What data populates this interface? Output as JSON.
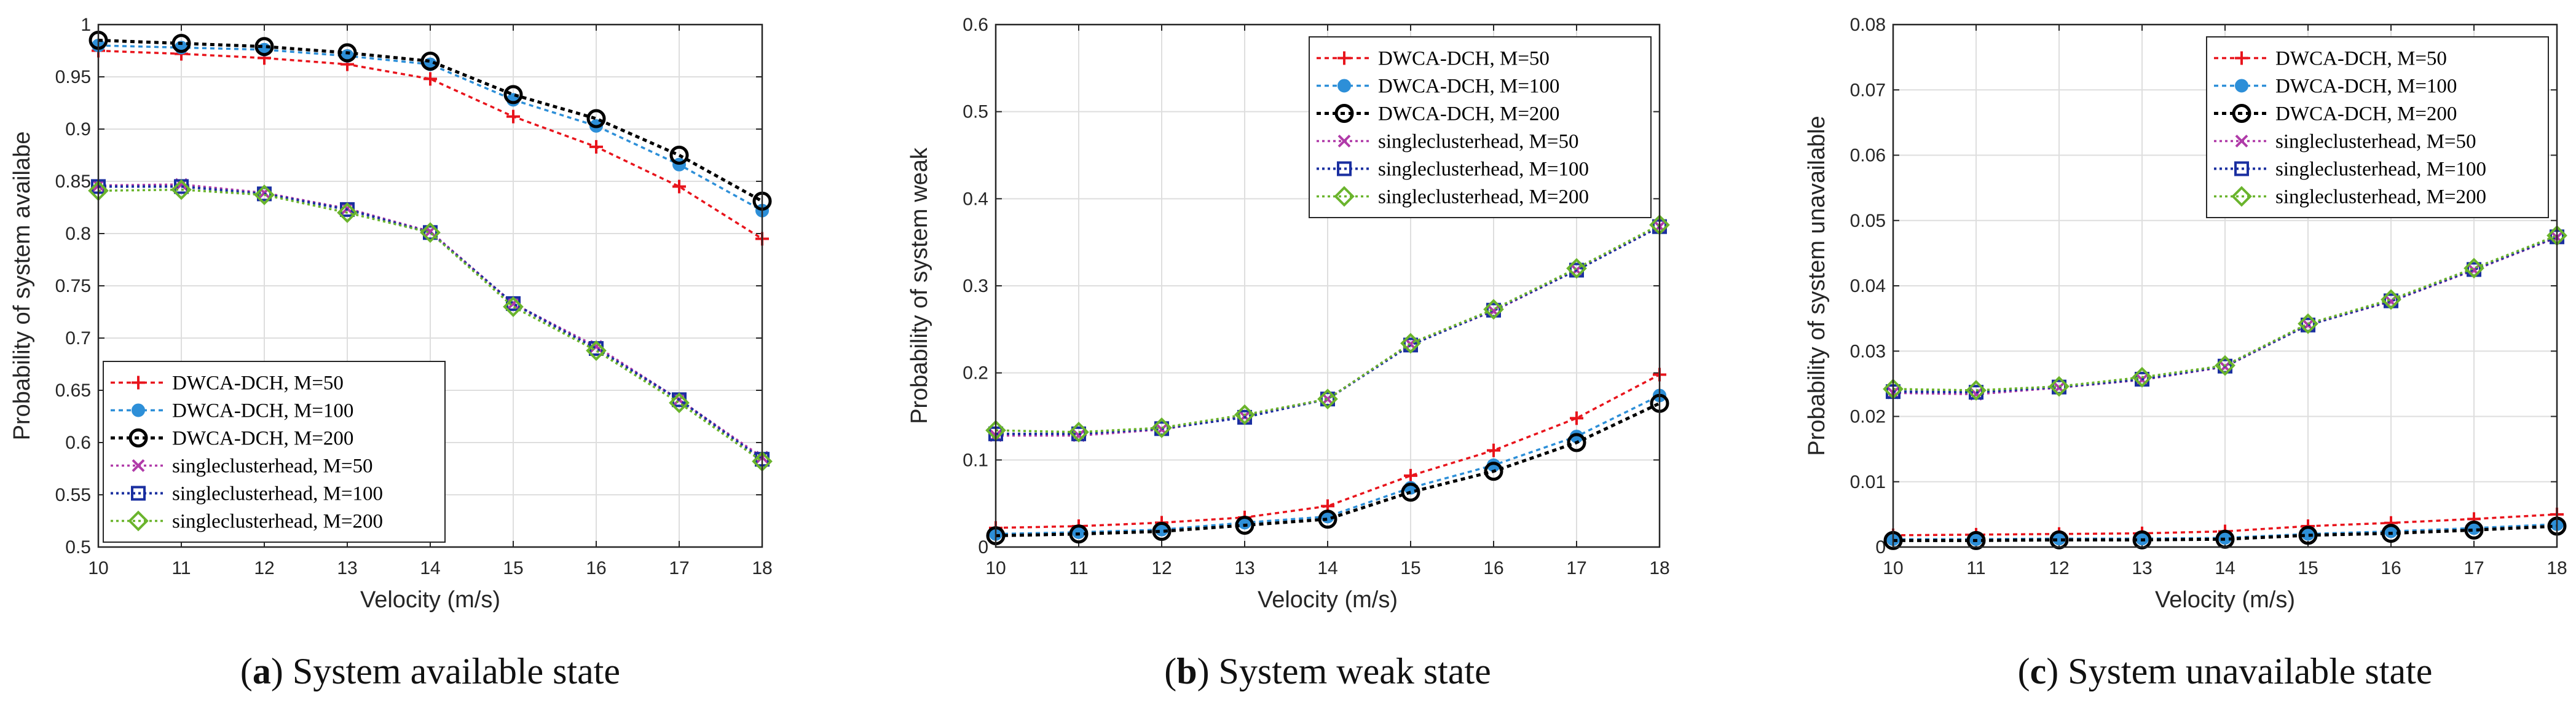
{
  "colors": {
    "DWCA-DCH, M=50": "#e8141c",
    "DWCA-DCH, M=100": "#2d8fd8",
    "DWCA-DCH, M=200": "#000000",
    "singleclusterhead, M=50": "#b03aa8",
    "singleclusterhead, M=100": "#1a2fa0",
    "singleclusterhead, M=200": "#6ab42c"
  },
  "chart_data": [
    {
      "type": "line",
      "panel_tag": "a",
      "caption": "System available state",
      "xlabel": "Velocity (m/s)",
      "ylabel": "Probability of system availabe",
      "x": [
        10,
        11,
        12,
        13,
        14,
        15,
        16,
        17,
        18
      ],
      "xticks": [
        "10",
        "11",
        "12",
        "13",
        "14",
        "15",
        "16",
        "17",
        "18"
      ],
      "xlim": [
        10,
        18
      ],
      "ylim": [
        0.5,
        1
      ],
      "yticks": [
        "0.5",
        "0.55",
        "0.6",
        "0.65",
        "0.7",
        "0.75",
        "0.8",
        "0.85",
        "0.9",
        "0.95",
        "1"
      ],
      "grid": true,
      "legend_position": "bottom-left",
      "series": [
        {
          "name": "DWCA-DCH, M=50",
          "marker": "plus",
          "values": [
            0.975,
            0.972,
            0.968,
            0.962,
            0.948,
            0.912,
            0.883,
            0.845,
            0.795
          ]
        },
        {
          "name": "DWCA-DCH, M=100",
          "marker": "dot",
          "values": [
            0.98,
            0.978,
            0.976,
            0.97,
            0.962,
            0.928,
            0.903,
            0.866,
            0.822
          ]
        },
        {
          "name": "DWCA-DCH, M=200",
          "marker": "circle",
          "values": [
            0.985,
            0.982,
            0.979,
            0.973,
            0.965,
            0.933,
            0.91,
            0.875,
            0.831
          ]
        },
        {
          "name": "singleclusterhead, M=50",
          "marker": "x",
          "values": [
            0.846,
            0.847,
            0.839,
            0.824,
            0.802,
            0.733,
            0.692,
            0.641,
            0.586
          ]
        },
        {
          "name": "singleclusterhead, M=100",
          "marker": "square",
          "values": [
            0.845,
            0.845,
            0.838,
            0.823,
            0.801,
            0.733,
            0.69,
            0.641,
            0.584
          ]
        },
        {
          "name": "singleclusterhead, M=200",
          "marker": "diamond",
          "values": [
            0.841,
            0.842,
            0.837,
            0.82,
            0.801,
            0.73,
            0.688,
            0.638,
            0.582
          ]
        }
      ]
    },
    {
      "type": "line",
      "panel_tag": "b",
      "caption": "System weak state",
      "xlabel": "Velocity (m/s)",
      "ylabel": "Probability of system weak",
      "x": [
        10,
        11,
        12,
        13,
        14,
        15,
        16,
        17,
        18
      ],
      "xticks": [
        "10",
        "11",
        "12",
        "13",
        "14",
        "15",
        "16",
        "17",
        "18"
      ],
      "xlim": [
        10,
        18
      ],
      "ylim": [
        0,
        0.6
      ],
      "yticks": [
        "0",
        "0.1",
        "0.2",
        "0.3",
        "0.4",
        "0.5",
        "0.6"
      ],
      "grid": true,
      "legend_position": "top-right",
      "series": [
        {
          "name": "DWCA-DCH, M=50",
          "marker": "plus",
          "values": [
            0.022,
            0.024,
            0.028,
            0.034,
            0.047,
            0.082,
            0.111,
            0.148,
            0.198
          ]
        },
        {
          "name": "DWCA-DCH, M=100",
          "marker": "dot",
          "values": [
            0.015,
            0.017,
            0.02,
            0.028,
            0.035,
            0.068,
            0.094,
            0.127,
            0.174
          ]
        },
        {
          "name": "DWCA-DCH, M=200",
          "marker": "circle",
          "values": [
            0.013,
            0.015,
            0.018,
            0.025,
            0.032,
            0.063,
            0.087,
            0.12,
            0.165
          ]
        },
        {
          "name": "singleclusterhead, M=50",
          "marker": "x",
          "values": [
            0.128,
            0.128,
            0.135,
            0.15,
            0.17,
            0.233,
            0.271,
            0.318,
            0.368
          ]
        },
        {
          "name": "singleclusterhead, M=100",
          "marker": "square",
          "values": [
            0.13,
            0.13,
            0.136,
            0.149,
            0.17,
            0.232,
            0.272,
            0.318,
            0.368
          ]
        },
        {
          "name": "singleclusterhead, M=200",
          "marker": "diamond",
          "values": [
            0.134,
            0.132,
            0.137,
            0.152,
            0.17,
            0.234,
            0.273,
            0.32,
            0.37
          ]
        }
      ]
    },
    {
      "type": "line",
      "panel_tag": "c",
      "caption": "System unavailable state",
      "xlabel": "Velocity (m/s)",
      "ylabel": "Probability of system unavailable",
      "x": [
        10,
        11,
        12,
        13,
        14,
        15,
        16,
        17,
        18
      ],
      "xticks": [
        "10",
        "11",
        "12",
        "13",
        "14",
        "15",
        "16",
        "17",
        "18"
      ],
      "xlim": [
        10,
        18
      ],
      "ylim": [
        0,
        0.08
      ],
      "yticks": [
        "0",
        "0.01",
        "0.02",
        "0.03",
        "0.04",
        "0.05",
        "0.06",
        "0.07",
        "0.08"
      ],
      "grid": true,
      "legend_position": "top-right",
      "series": [
        {
          "name": "DWCA-DCH, M=50",
          "marker": "plus",
          "values": [
            0.0018,
            0.0019,
            0.002,
            0.0021,
            0.0024,
            0.0032,
            0.0037,
            0.0043,
            0.005
          ]
        },
        {
          "name": "DWCA-DCH, M=100",
          "marker": "dot",
          "values": [
            0.0012,
            0.0012,
            0.0013,
            0.0013,
            0.0014,
            0.002,
            0.0024,
            0.0029,
            0.0035
          ]
        },
        {
          "name": "DWCA-DCH, M=200",
          "marker": "circle",
          "values": [
            0.001,
            0.001,
            0.0011,
            0.0011,
            0.0012,
            0.0018,
            0.0021,
            0.0026,
            0.0032
          ]
        },
        {
          "name": "singleclusterhead, M=50",
          "marker": "x",
          "values": [
            0.0236,
            0.0234,
            0.0244,
            0.0256,
            0.0276,
            0.034,
            0.0376,
            0.0424,
            0.0474
          ]
        },
        {
          "name": "singleclusterhead, M=100",
          "marker": "square",
          "values": [
            0.0238,
            0.0237,
            0.0245,
            0.0257,
            0.0277,
            0.034,
            0.0377,
            0.0425,
            0.0475
          ]
        },
        {
          "name": "singleclusterhead, M=200",
          "marker": "diamond",
          "values": [
            0.0242,
            0.024,
            0.0246,
            0.026,
            0.0278,
            0.0342,
            0.0379,
            0.0427,
            0.0477
          ]
        }
      ]
    }
  ]
}
